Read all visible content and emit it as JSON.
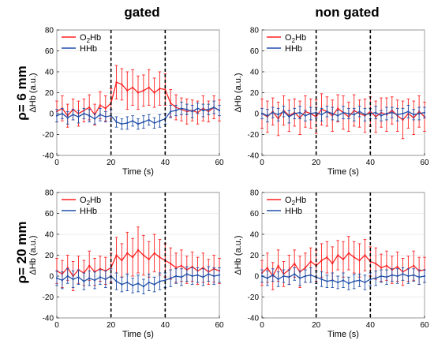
{
  "column_titles": [
    "gated",
    "non gated"
  ],
  "row_titles": [
    "ρ= 6 mm",
    "ρ= 20 mm"
  ],
  "colors": {
    "o2hb": "#ff2020",
    "hhb": "#1f4fa8"
  },
  "chart_data": [
    {
      "id": "rho6-gated",
      "type": "line",
      "xlabel": "Time (s)",
      "ylabel": "ΔHb (a.u.)",
      "xlim": [
        0,
        60
      ],
      "ylim": [
        -40,
        80
      ],
      "xticks": [
        0,
        20,
        40,
        60
      ],
      "yticks": [
        -40,
        -20,
        0,
        20,
        40,
        60,
        80
      ],
      "grid": true,
      "legend_position": "top-left",
      "vlines": [
        20,
        40
      ],
      "legend": [
        "O2Hb",
        "HHb"
      ],
      "series": [
        {
          "name": "O2Hb",
          "color": "#ff2020",
          "x": [
            0,
            2,
            4,
            6,
            8,
            10,
            12,
            14,
            16,
            18,
            20,
            22,
            24,
            26,
            28,
            30,
            32,
            34,
            36,
            38,
            40,
            42,
            44,
            46,
            48,
            50,
            52,
            54,
            56,
            58,
            60
          ],
          "y": [
            2,
            5,
            -2,
            4,
            0,
            3,
            6,
            -1,
            8,
            5,
            10,
            30,
            28,
            22,
            25,
            20,
            22,
            25,
            20,
            24,
            23,
            10,
            6,
            4,
            2,
            3,
            1,
            5,
            2,
            6,
            3
          ],
          "err": [
            10,
            12,
            11,
            10,
            12,
            11,
            12,
            10,
            13,
            12,
            14,
            16,
            15,
            18,
            17,
            16,
            15,
            17,
            14,
            16,
            15,
            13,
            12,
            11,
            12,
            10,
            11,
            12,
            10,
            11,
            10
          ]
        },
        {
          "name": "HHb",
          "color": "#1f4fa8",
          "x": [
            0,
            2,
            4,
            6,
            8,
            10,
            12,
            14,
            16,
            18,
            20,
            22,
            24,
            26,
            28,
            30,
            32,
            34,
            36,
            38,
            40,
            42,
            44,
            46,
            48,
            50,
            52,
            54,
            56,
            58,
            60
          ],
          "y": [
            -2,
            0,
            -4,
            -1,
            -3,
            0,
            -2,
            -5,
            -1,
            -3,
            -2,
            -8,
            -10,
            -9,
            -7,
            -10,
            -8,
            -6,
            -9,
            -7,
            -5,
            2,
            3,
            5,
            4,
            2,
            5,
            3,
            4,
            6,
            3
          ],
          "err": [
            6,
            5,
            6,
            5,
            6,
            5,
            6,
            5,
            6,
            5,
            6,
            5,
            5,
            6,
            5,
            5,
            6,
            5,
            5,
            6,
            5,
            6,
            5,
            6,
            5,
            6,
            5,
            6,
            5,
            6,
            5
          ]
        }
      ]
    },
    {
      "id": "rho6-nongated",
      "type": "line",
      "xlabel": "Time (s)",
      "ylabel": "ΔHb (a.u.)",
      "xlim": [
        0,
        60
      ],
      "ylim": [
        -40,
        80
      ],
      "xticks": [
        0,
        20,
        40,
        60
      ],
      "yticks": [
        -40,
        -20,
        0,
        20,
        40,
        60,
        80
      ],
      "grid": true,
      "legend_position": "top-left",
      "vlines": [
        20,
        40
      ],
      "legend": [
        "O2Hb",
        "HHb"
      ],
      "series": [
        {
          "name": "O2Hb",
          "color": "#ff2020",
          "x": [
            0,
            2,
            4,
            6,
            8,
            10,
            12,
            14,
            16,
            18,
            20,
            22,
            24,
            26,
            28,
            30,
            32,
            34,
            36,
            38,
            40,
            42,
            44,
            46,
            48,
            50,
            52,
            54,
            56,
            58,
            60
          ],
          "y": [
            0,
            -3,
            2,
            -5,
            3,
            -2,
            1,
            -4,
            2,
            0,
            -3,
            4,
            2,
            -2,
            5,
            1,
            -3,
            3,
            0,
            -2,
            2,
            -3,
            1,
            -1,
            3,
            -2,
            -6,
            0,
            -4,
            2,
            -3
          ],
          "err": [
            14,
            15,
            13,
            16,
            14,
            15,
            13,
            16,
            15,
            14,
            16,
            15,
            14,
            15,
            13,
            16,
            14,
            15,
            13,
            16,
            14,
            15,
            14,
            16,
            13,
            15,
            18,
            14,
            16,
            15,
            14
          ]
        },
        {
          "name": "HHb",
          "color": "#1f4fa8",
          "x": [
            0,
            2,
            4,
            6,
            8,
            10,
            12,
            14,
            16,
            18,
            20,
            22,
            24,
            26,
            28,
            30,
            32,
            34,
            36,
            38,
            40,
            42,
            44,
            46,
            48,
            50,
            52,
            54,
            56,
            58,
            60
          ],
          "y": [
            0,
            -2,
            1,
            -1,
            2,
            -3,
            0,
            1,
            -2,
            0,
            1,
            -1,
            2,
            0,
            -2,
            1,
            0,
            -1,
            2,
            -1,
            0,
            1,
            -2,
            0,
            1,
            -1,
            0,
            2,
            -1,
            0,
            1
          ],
          "err": [
            5,
            6,
            5,
            6,
            5,
            6,
            5,
            6,
            5,
            6,
            5,
            6,
            5,
            6,
            5,
            6,
            5,
            6,
            5,
            6,
            5,
            6,
            5,
            6,
            5,
            6,
            5,
            6,
            5,
            6,
            5
          ]
        }
      ]
    },
    {
      "id": "rho20-gated",
      "type": "line",
      "xlabel": "Time (s)",
      "ylabel": "ΔHb (a.u.)",
      "xlim": [
        0,
        60
      ],
      "ylim": [
        -40,
        80
      ],
      "xticks": [
        0,
        20,
        40,
        60
      ],
      "yticks": [
        -40,
        -20,
        0,
        20,
        40,
        60,
        80
      ],
      "grid": true,
      "legend_position": "top-left",
      "vlines": [
        20,
        40
      ],
      "legend": [
        "O2Hb",
        "HHb"
      ],
      "series": [
        {
          "name": "O2Hb",
          "color": "#ff2020",
          "x": [
            0,
            2,
            4,
            6,
            8,
            10,
            12,
            14,
            16,
            18,
            20,
            22,
            24,
            26,
            28,
            30,
            32,
            34,
            36,
            38,
            40,
            42,
            44,
            46,
            48,
            50,
            52,
            54,
            56,
            58,
            60
          ],
          "y": [
            5,
            2,
            8,
            0,
            6,
            3,
            10,
            4,
            7,
            5,
            8,
            20,
            15,
            22,
            18,
            25,
            20,
            16,
            22,
            18,
            15,
            12,
            8,
            10,
            6,
            9,
            5,
            8,
            4,
            7,
            5
          ],
          "err": [
            12,
            13,
            12,
            14,
            13,
            12,
            14,
            13,
            12,
            13,
            14,
            17,
            16,
            20,
            18,
            22,
            19,
            17,
            18,
            17,
            16,
            15,
            14,
            15,
            13,
            14,
            13,
            14,
            12,
            13,
            12
          ]
        },
        {
          "name": "HHb",
          "color": "#1f4fa8",
          "x": [
            0,
            2,
            4,
            6,
            8,
            10,
            12,
            14,
            16,
            18,
            20,
            22,
            24,
            26,
            28,
            30,
            32,
            34,
            36,
            38,
            40,
            42,
            44,
            46,
            48,
            50,
            52,
            54,
            56,
            58,
            60
          ],
          "y": [
            -2,
            -4,
            0,
            -3,
            -1,
            -5,
            -2,
            -4,
            -1,
            -3,
            0,
            -5,
            -8,
            -6,
            -9,
            -7,
            -10,
            -6,
            -8,
            -5,
            -4,
            -2,
            0,
            -1,
            2,
            0,
            1,
            -1,
            2,
            0,
            1
          ],
          "err": [
            7,
            8,
            7,
            8,
            7,
            8,
            7,
            8,
            7,
            8,
            7,
            8,
            7,
            8,
            7,
            8,
            7,
            8,
            7,
            8,
            7,
            8,
            7,
            8,
            7,
            8,
            7,
            8,
            7,
            8,
            7
          ]
        }
      ]
    },
    {
      "id": "rho20-nongated",
      "type": "line",
      "xlabel": "Time (s)",
      "ylabel": "ΔHb (a.u.)",
      "xlim": [
        0,
        60
      ],
      "ylim": [
        -40,
        80
      ],
      "xticks": [
        0,
        20,
        40,
        60
      ],
      "yticks": [
        -40,
        -20,
        0,
        20,
        40,
        60,
        80
      ],
      "grid": true,
      "legend_position": "top-left",
      "vlines": [
        20,
        40
      ],
      "legend": [
        "O2Hb",
        "HHb"
      ],
      "series": [
        {
          "name": "O2Hb",
          "color": "#ff2020",
          "x": [
            0,
            2,
            4,
            6,
            8,
            10,
            12,
            14,
            16,
            18,
            20,
            22,
            24,
            26,
            28,
            30,
            32,
            34,
            36,
            38,
            40,
            42,
            44,
            46,
            48,
            50,
            52,
            54,
            56,
            58,
            60
          ],
          "y": [
            3,
            8,
            0,
            10,
            2,
            6,
            12,
            4,
            8,
            14,
            10,
            15,
            18,
            12,
            20,
            16,
            22,
            18,
            15,
            20,
            14,
            12,
            8,
            10,
            6,
            9,
            4,
            7,
            10,
            5,
            6
          ],
          "err": [
            12,
            14,
            13,
            15,
            12,
            14,
            13,
            15,
            14,
            13,
            15,
            16,
            15,
            16,
            14,
            17,
            16,
            15,
            16,
            15,
            14,
            15,
            13,
            14,
            13,
            14,
            13,
            12,
            14,
            13,
            12
          ]
        },
        {
          "name": "HHb",
          "color": "#1f4fa8",
          "x": [
            0,
            2,
            4,
            6,
            8,
            10,
            12,
            14,
            16,
            18,
            20,
            22,
            24,
            26,
            28,
            30,
            32,
            34,
            36,
            38,
            40,
            42,
            44,
            46,
            48,
            50,
            52,
            54,
            56,
            58,
            60
          ],
          "y": [
            0,
            -2,
            1,
            -3,
            0,
            -1,
            2,
            -2,
            0,
            1,
            -1,
            -3,
            -5,
            -4,
            -6,
            -4,
            -7,
            -5,
            -4,
            -6,
            -3,
            -2,
            0,
            -1,
            1,
            0,
            2,
            0,
            1,
            -1,
            0
          ],
          "err": [
            6,
            7,
            6,
            7,
            6,
            7,
            6,
            7,
            6,
            7,
            6,
            7,
            6,
            7,
            6,
            7,
            6,
            7,
            6,
            7,
            6,
            7,
            6,
            7,
            6,
            7,
            6,
            7,
            6,
            7,
            6
          ]
        }
      ]
    }
  ]
}
